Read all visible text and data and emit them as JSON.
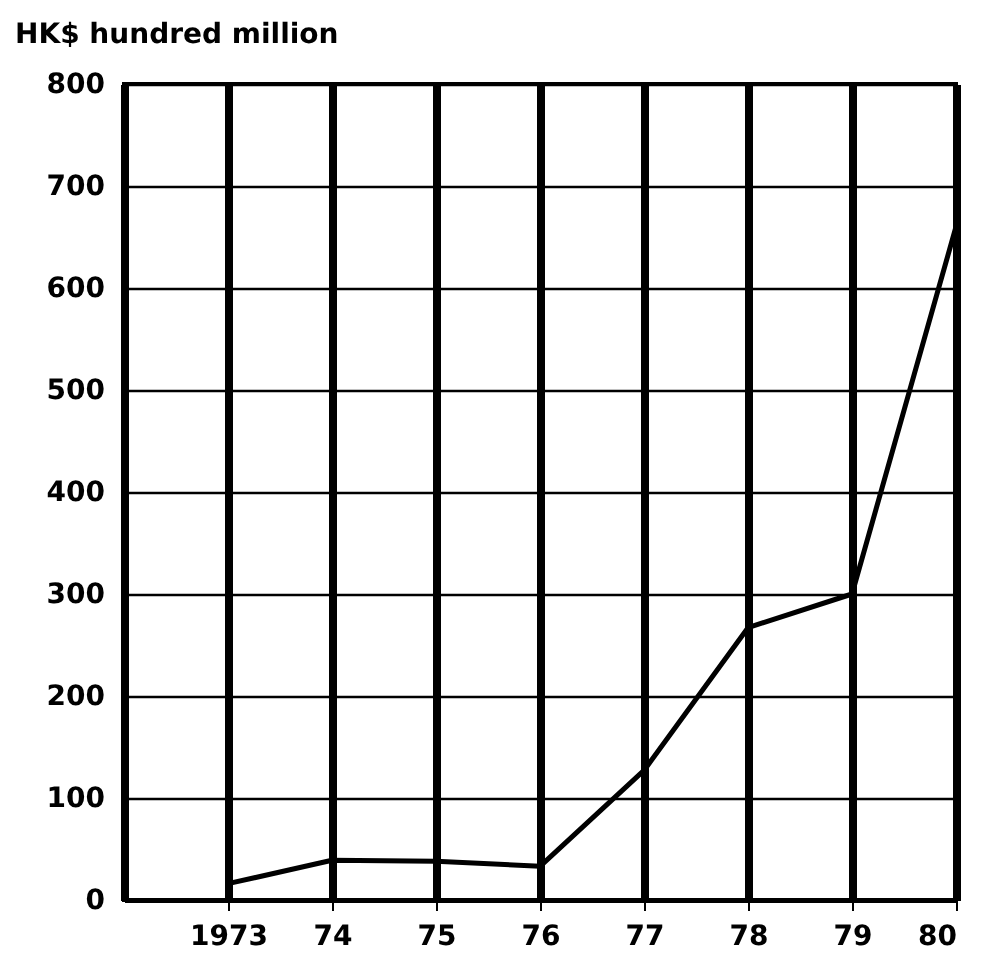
{
  "chart_data": {
    "type": "line",
    "ylabel": "HK$ hundred million",
    "x": [
      1973,
      1974,
      1975,
      1976,
      1977,
      1978,
      1979,
      1980
    ],
    "series": [
      {
        "color": "#000000",
        "values": [
          16,
          39,
          38,
          33,
          127,
          267,
          300,
          660
        ]
      }
    ],
    "xlim": [
      1972,
      1980
    ],
    "xticks": [
      {
        "value": 1973,
        "label": "1973"
      },
      {
        "value": 1974,
        "label": "74"
      },
      {
        "value": 1975,
        "label": "75"
      },
      {
        "value": 1976,
        "label": "76"
      },
      {
        "value": 1977,
        "label": "77"
      },
      {
        "value": 1978,
        "label": "78"
      },
      {
        "value": 1979,
        "label": "79"
      },
      {
        "value": 1980,
        "label": "80"
      }
    ],
    "ylim": [
      0,
      800
    ],
    "yticks": [
      0,
      100,
      200,
      300,
      400,
      500,
      600,
      700,
      800
    ],
    "grid": true,
    "marker": "none",
    "line_style": "solid"
  }
}
